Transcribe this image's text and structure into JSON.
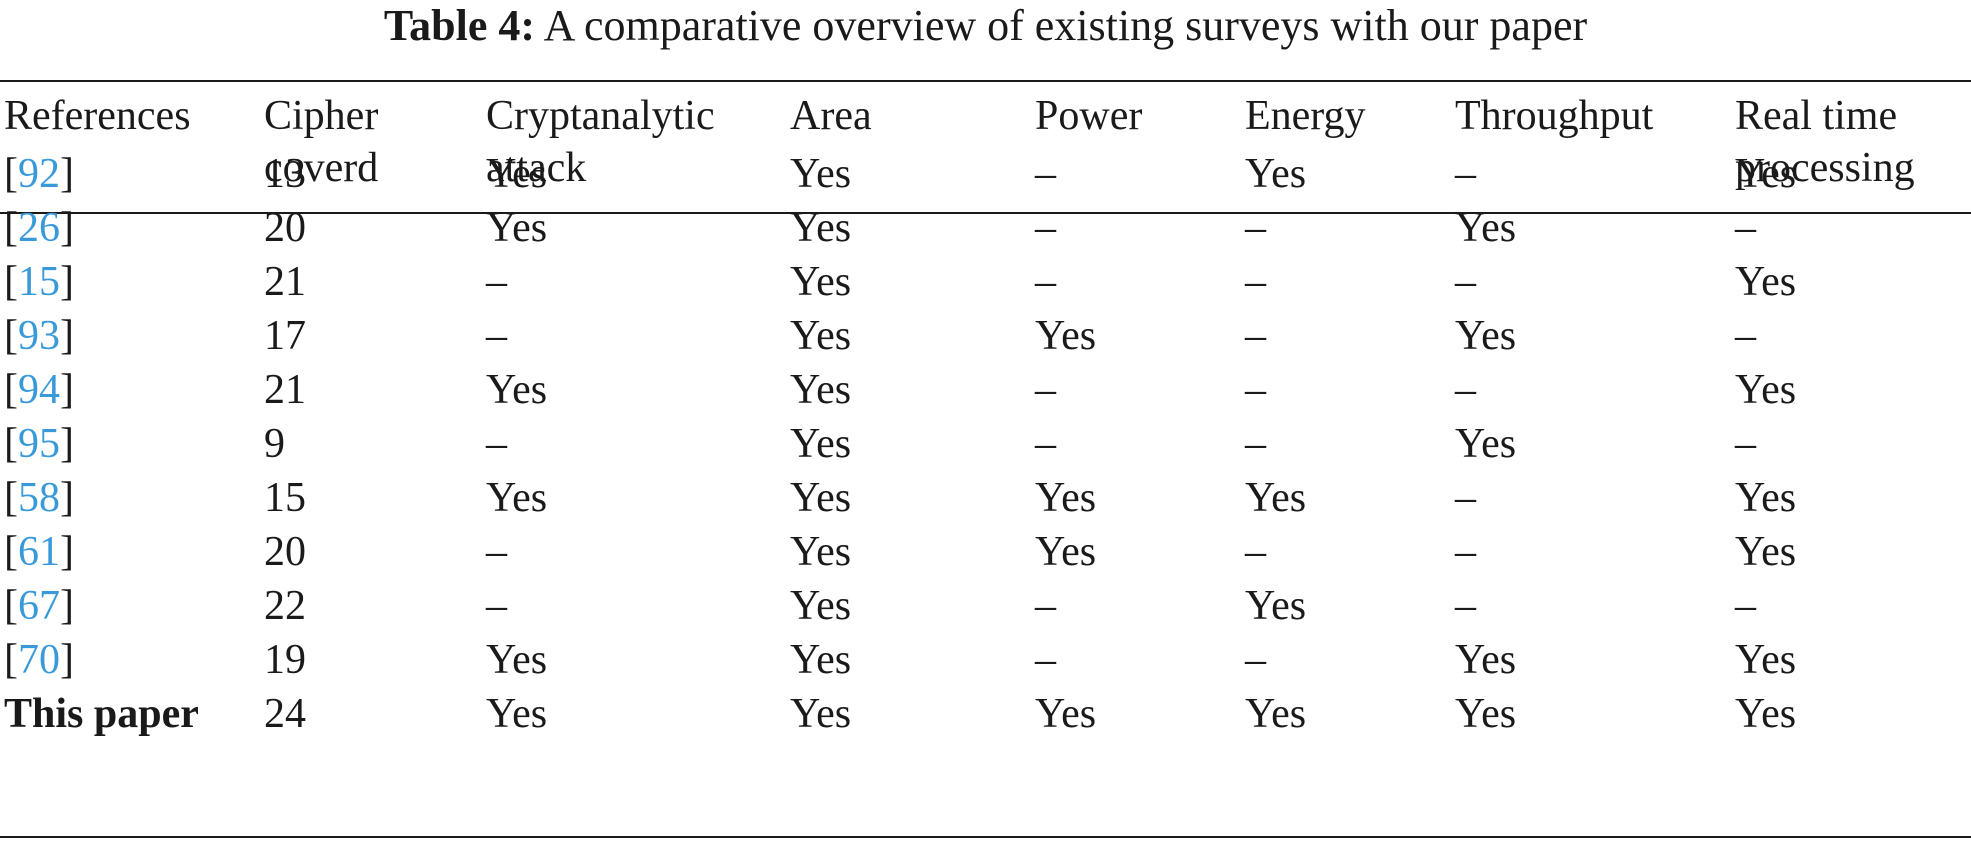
{
  "caption": {
    "label": "Table 4:",
    "text": "A comparative overview of existing surveys with our paper"
  },
  "headers": [
    [
      "References"
    ],
    [
      "Cipher",
      "coverd"
    ],
    [
      "Cryptanalytic",
      "attack"
    ],
    [
      "Area"
    ],
    [
      "Power"
    ],
    [
      "Energy"
    ],
    [
      "Throughput"
    ],
    [
      "Real time",
      "processing"
    ]
  ],
  "rows": [
    {
      "ref": "92",
      "cells": [
        "13",
        "Yes",
        "Yes",
        "–",
        "Yes",
        "–",
        "Yes"
      ]
    },
    {
      "ref": "26",
      "cells": [
        "20",
        "Yes",
        "Yes",
        "–",
        "–",
        "Yes",
        "–"
      ]
    },
    {
      "ref": "15",
      "cells": [
        "21",
        "–",
        "Yes",
        "–",
        "–",
        "–",
        "Yes"
      ]
    },
    {
      "ref": "93",
      "cells": [
        "17",
        "–",
        "Yes",
        "Yes",
        "–",
        "Yes",
        "–"
      ]
    },
    {
      "ref": "94",
      "cells": [
        "21",
        "Yes",
        "Yes",
        "–",
        "–",
        "–",
        "Yes"
      ]
    },
    {
      "ref": "95",
      "cells": [
        "9",
        "–",
        "Yes",
        "–",
        "–",
        "Yes",
        "–"
      ]
    },
    {
      "ref": "58",
      "cells": [
        "15",
        "Yes",
        "Yes",
        "Yes",
        "Yes",
        "–",
        "Yes"
      ]
    },
    {
      "ref": "61",
      "cells": [
        "20",
        "–",
        "Yes",
        "Yes",
        "–",
        "–",
        "Yes"
      ]
    },
    {
      "ref": "67",
      "cells": [
        "22",
        "–",
        "Yes",
        "–",
        "Yes",
        "–",
        "–"
      ]
    },
    {
      "ref": "70",
      "cells": [
        "19",
        "Yes",
        "Yes",
        "–",
        "–",
        "Yes",
        "Yes"
      ]
    }
  ],
  "final_row": {
    "label": "This paper",
    "cells": [
      "24",
      "Yes",
      "Yes",
      "Yes",
      "Yes",
      "Yes",
      "Yes"
    ]
  }
}
